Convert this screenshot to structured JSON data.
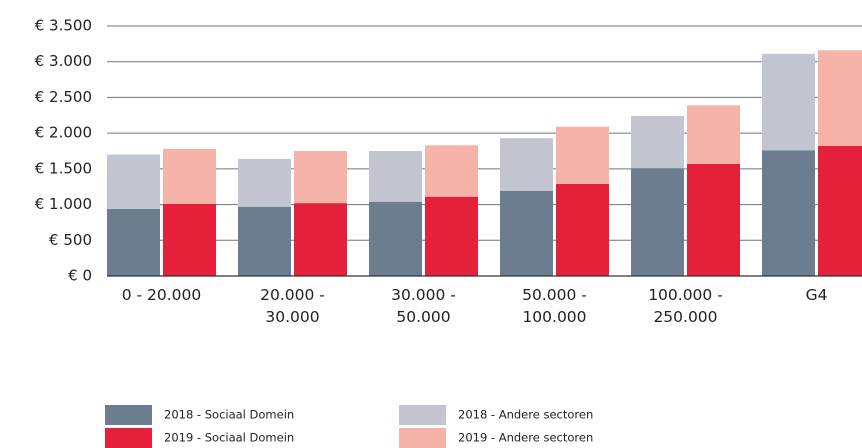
{
  "chart_data": {
    "type": "bar",
    "categories": [
      "0 - 20.000",
      "20.000 - 30.000",
      "30.000 - 50.000",
      "50.000 - 100.000",
      "100.000 - 250.000",
      "G4"
    ],
    "series": [
      {
        "name": "2018 - Sociaal Domein",
        "color": "#6b7d8f",
        "values": [
          940,
          970,
          1040,
          1190,
          1510,
          1760
        ]
      },
      {
        "name": "2018 - Andere sectoren",
        "color": "#c3c6d1",
        "values": [
          760,
          670,
          710,
          740,
          730,
          1350
        ]
      },
      {
        "name": "2019 - Sociaal Domein",
        "color": "#e4203b",
        "values": [
          1010,
          1020,
          1110,
          1290,
          1570,
          1820
        ]
      },
      {
        "name": "2019 - Andere sectoren",
        "color": "#f6b4a8",
        "values": [
          770,
          730,
          720,
          800,
          820,
          1340
        ]
      }
    ],
    "ylim": [
      0,
      3500
    ],
    "yticks": [
      {
        "value": 0,
        "label": "€ 0"
      },
      {
        "value": 500,
        "label": "€ 500"
      },
      {
        "value": 1000,
        "label": "€ 1.000"
      },
      {
        "value": 1500,
        "label": "€ 1.500"
      },
      {
        "value": 2000,
        "label": "€ 2.000"
      },
      {
        "value": 2500,
        "label": "€ 2.500"
      },
      {
        "value": 3000,
        "label": "€ 3.000"
      },
      {
        "value": 3500,
        "label": "€ 3.500"
      }
    ],
    "grid": true
  }
}
